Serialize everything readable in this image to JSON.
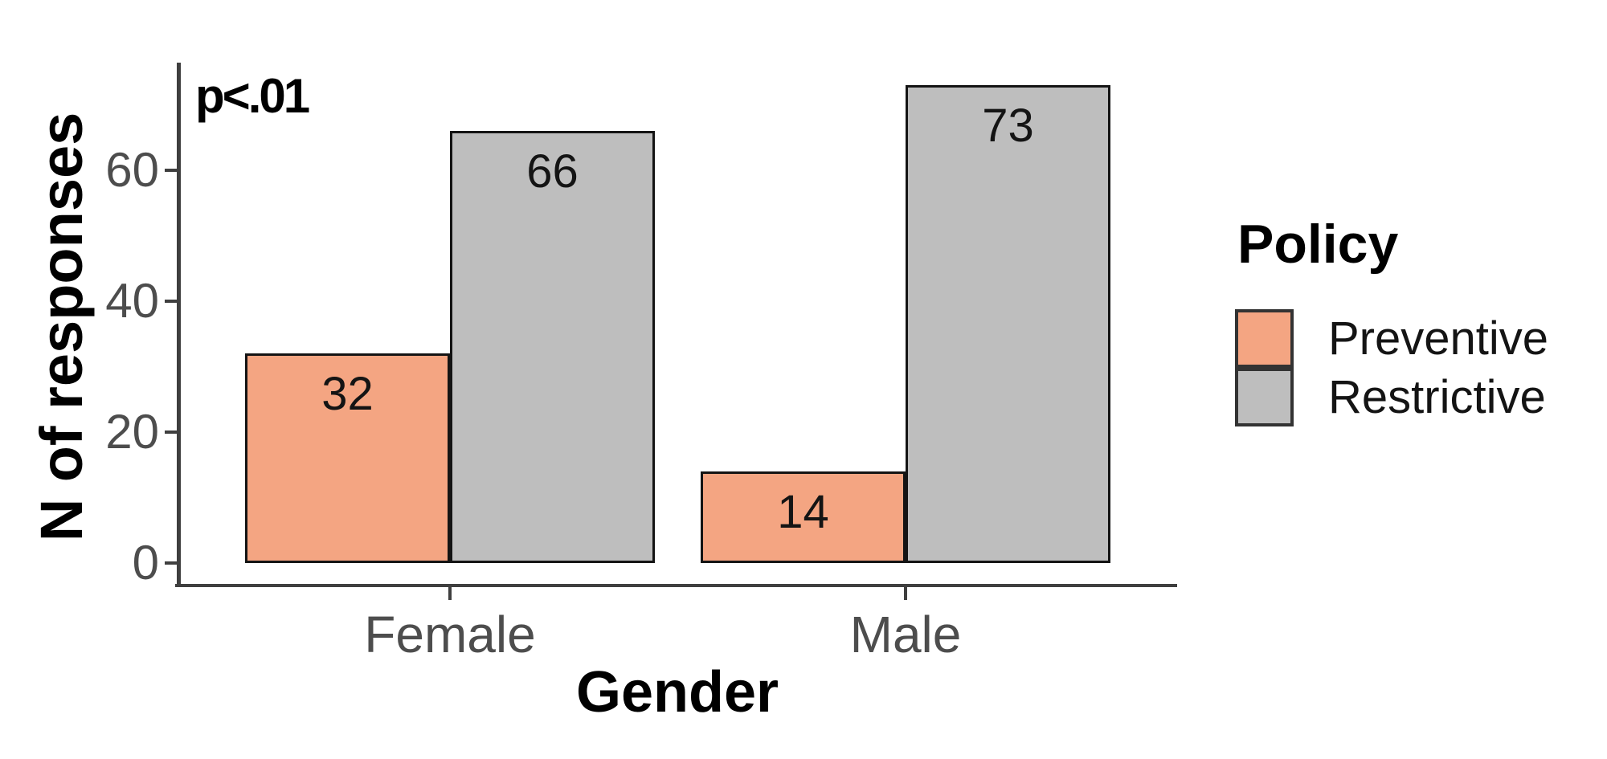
{
  "chart_data": {
    "type": "bar",
    "title": "",
    "xlabel": "Gender",
    "ylabel": "N of responses",
    "annotation": "p<.01",
    "categories": [
      "Female",
      "Male"
    ],
    "series": [
      {
        "name": "Preventive",
        "color": "#F4A582",
        "values": [
          32,
          14
        ]
      },
      {
        "name": "Restrictive",
        "color": "#BEBEBE",
        "values": [
          66,
          73
        ]
      }
    ],
    "bar_value_labels": true,
    "y_ticks": [
      0,
      20,
      40,
      60
    ],
    "ylim": [
      0,
      76.7
    ],
    "grid": false,
    "legend": {
      "title": "Policy",
      "position": "right",
      "entries": [
        "Preventive",
        "Restrictive"
      ]
    },
    "colors": {
      "preventive": "#F4A582",
      "restrictive": "#BEBEBE",
      "bar_outline": "#141414",
      "axis_line": "#3f3f3f",
      "tick_label": "#4d4d4d",
      "text": "#000000"
    }
  }
}
